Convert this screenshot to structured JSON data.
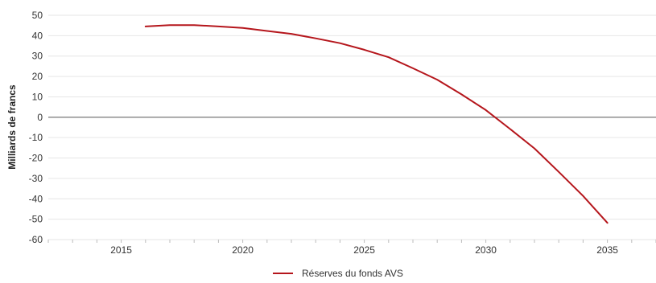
{
  "chart_data": {
    "type": "line",
    "title": "",
    "xlabel": "",
    "ylabel": "Milliards de francs",
    "ylim": [
      -60,
      50
    ],
    "xlim": [
      2012,
      2037
    ],
    "yticks": [
      50,
      40,
      30,
      20,
      10,
      0,
      -10,
      -20,
      -30,
      -40,
      -50,
      -60
    ],
    "ytick_labels": [
      "50",
      "40",
      "30",
      "20",
      "10",
      "0",
      "-10",
      "-20",
      "-30",
      "-40",
      "-50",
      "-60"
    ],
    "xticks": [
      2015,
      2020,
      2025,
      2030,
      2035
    ],
    "xtick_labels": [
      "2015",
      "2020",
      "2025",
      "2030",
      "2035"
    ],
    "grid": "horizontal",
    "legend_position": "bottom-center",
    "series": [
      {
        "name": "Réserves du fonds AVS",
        "color": "#b5161c",
        "x": [
          2016,
          2017,
          2018,
          2019,
          2020,
          2021,
          2022,
          2023,
          2024,
          2025,
          2026,
          2027,
          2028,
          2029,
          2030,
          2031,
          2032,
          2033,
          2034,
          2035
        ],
        "y": [
          44.5,
          45.2,
          45.2,
          44.5,
          43.8,
          42.3,
          40.9,
          38.7,
          36.3,
          33.1,
          29.4,
          24.0,
          18.4,
          11.2,
          3.5,
          -5.8,
          -15.3,
          -26.8,
          -38.6,
          -51.8
        ]
      }
    ]
  },
  "legend": {
    "label": "Réserves du fonds AVS"
  }
}
